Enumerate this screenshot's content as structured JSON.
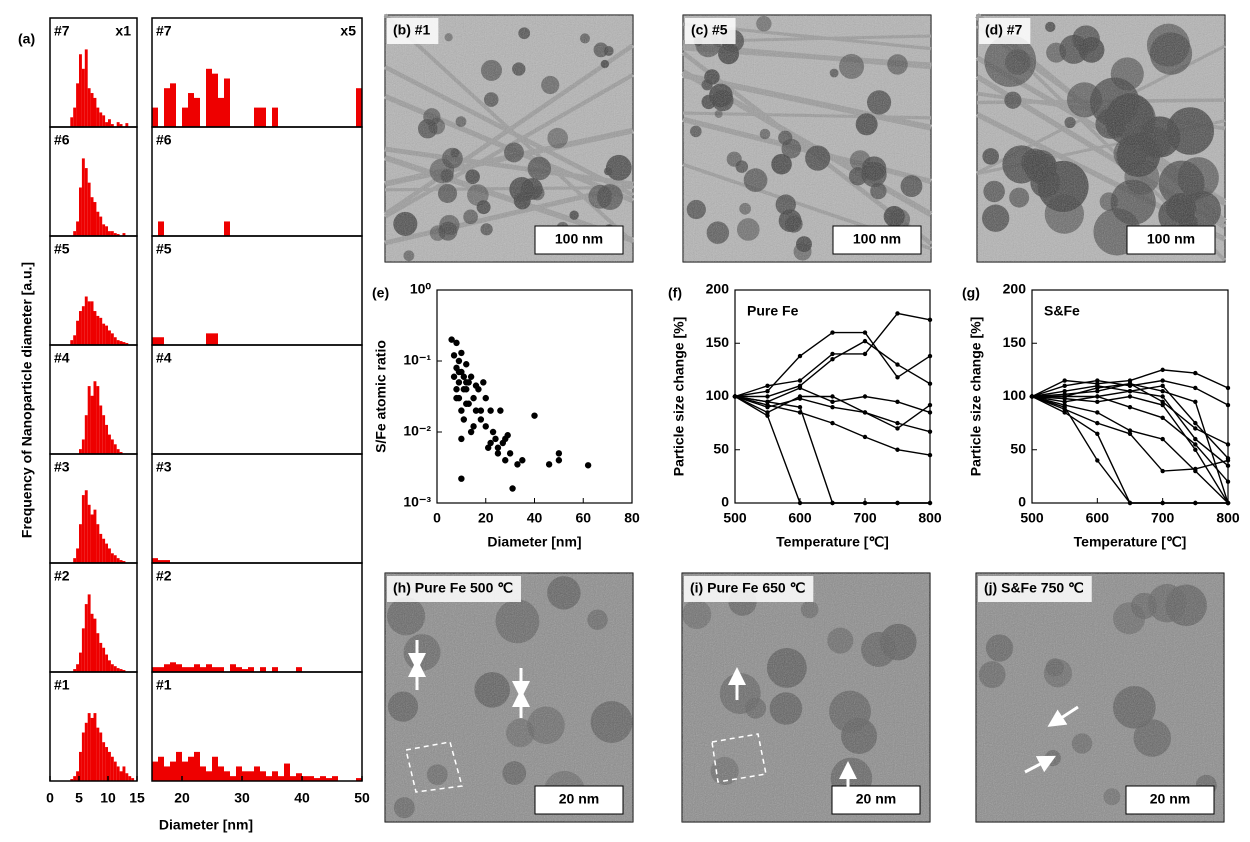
{
  "chart_data": [
    {
      "type": "histogram",
      "panel_label": "(a)",
      "scale_note": "x1",
      "xlabel": "Diameter [nm]",
      "ylabel": "Frequency of Nanoparticle diameter [a.u.]",
      "bins": [
        0,
        0.5,
        1,
        1.5,
        2,
        2.5,
        3,
        3.5,
        4,
        4.5,
        5,
        5.5,
        6,
        6.5,
        7,
        7.5,
        8,
        8.5,
        9,
        9.5,
        10,
        10.5,
        11,
        11.5,
        12,
        12.5,
        13,
        13.5,
        14,
        14.5,
        15
      ],
      "xlim": [
        0,
        15
      ],
      "xticks": [
        0,
        5,
        10,
        15
      ],
      "ylim": [
        0,
        100
      ],
      "series": [
        {
          "name": "#7",
          "color": "#ee0000",
          "values": [
            0,
            0,
            0,
            0,
            0,
            0,
            0,
            10,
            20,
            45,
            75,
            60,
            80,
            40,
            35,
            30,
            20,
            15,
            12,
            5,
            8,
            3,
            0,
            5,
            3,
            0,
            4,
            0,
            0,
            0
          ]
        },
        {
          "name": "#6",
          "color": "#ee0000",
          "values": [
            0,
            0,
            0,
            0,
            0,
            0,
            0,
            0,
            5,
            15,
            50,
            80,
            70,
            55,
            40,
            35,
            25,
            20,
            12,
            10,
            5,
            5,
            3,
            2,
            0,
            3,
            0,
            0,
            0,
            0
          ]
        },
        {
          "name": "#5",
          "color": "#ee0000",
          "values": [
            0,
            0,
            0,
            0,
            0,
            0,
            0,
            5,
            10,
            25,
            35,
            40,
            50,
            45,
            45,
            35,
            30,
            28,
            22,
            20,
            15,
            12,
            8,
            5,
            4,
            3,
            2,
            0,
            0,
            0
          ]
        },
        {
          "name": "#4",
          "color": "#ee0000",
          "values": [
            0,
            0,
            0,
            0,
            0,
            0,
            0,
            0,
            0,
            0,
            5,
            15,
            40,
            70,
            60,
            75,
            70,
            50,
            40,
            30,
            20,
            15,
            10,
            5,
            2,
            0,
            0,
            0,
            0,
            0
          ]
        },
        {
          "name": "#3",
          "color": "#ee0000",
          "values": [
            0,
            0,
            0,
            0,
            0,
            0,
            0,
            0,
            5,
            15,
            40,
            70,
            75,
            60,
            50,
            55,
            40,
            30,
            25,
            20,
            15,
            10,
            8,
            5,
            3,
            2,
            0,
            0,
            0,
            0
          ]
        },
        {
          "name": "#2",
          "color": "#ee0000",
          "values": [
            0,
            0,
            0,
            0,
            0,
            0,
            0,
            0,
            3,
            8,
            20,
            45,
            70,
            80,
            60,
            55,
            40,
            30,
            25,
            18,
            12,
            8,
            6,
            4,
            3,
            2,
            0,
            0,
            0,
            0
          ]
        },
        {
          "name": "#1",
          "color": "#ee0000",
          "values": [
            0,
            0,
            0,
            0,
            0,
            0,
            0,
            2,
            5,
            10,
            30,
            50,
            60,
            70,
            65,
            70,
            55,
            50,
            40,
            35,
            30,
            25,
            20,
            15,
            10,
            15,
            8,
            5,
            3,
            0
          ]
        }
      ]
    },
    {
      "type": "histogram",
      "scale_note": "x5",
      "bins": [
        15,
        16,
        17,
        18,
        19,
        20,
        21,
        22,
        23,
        24,
        25,
        26,
        27,
        28,
        29,
        30,
        31,
        32,
        33,
        34,
        35,
        36,
        37,
        38,
        39,
        40,
        41,
        42,
        43,
        44,
        45,
        46,
        47,
        48,
        49,
        50
      ],
      "xlim": [
        15,
        50
      ],
      "xticks": [
        20,
        30,
        40,
        50
      ],
      "ylim": [
        0,
        100
      ],
      "series": [
        {
          "name": "#7",
          "color": "#ee0000",
          "values": [
            20,
            0,
            40,
            45,
            0,
            20,
            35,
            30,
            0,
            60,
            55,
            30,
            50,
            0,
            0,
            0,
            0,
            20,
            20,
            0,
            20,
            0,
            0,
            0,
            0,
            0,
            0,
            0,
            0,
            0,
            0,
            0,
            0,
            0,
            40
          ]
        },
        {
          "name": "#6",
          "color": "#ee0000",
          "values": [
            0,
            15,
            0,
            0,
            0,
            0,
            0,
            0,
            0,
            0,
            0,
            0,
            15,
            0,
            0,
            0,
            0,
            0,
            0,
            0,
            0,
            0,
            0,
            0,
            0,
            0,
            0,
            0,
            0,
            0,
            0,
            0,
            0,
            0,
            0
          ]
        },
        {
          "name": "#5",
          "color": "#ee0000",
          "values": [
            8,
            8,
            0,
            0,
            0,
            0,
            0,
            0,
            0,
            12,
            12,
            0,
            0,
            0,
            0,
            0,
            0,
            0,
            0,
            0,
            0,
            0,
            0,
            0,
            0,
            0,
            0,
            0,
            0,
            0,
            0,
            0,
            0,
            0,
            0
          ]
        },
        {
          "name": "#4",
          "color": "#ee0000",
          "values": [
            0,
            0,
            0,
            0,
            0,
            0,
            0,
            0,
            0,
            0,
            0,
            0,
            0,
            0,
            0,
            0,
            0,
            0,
            0,
            0,
            0,
            0,
            0,
            0,
            0,
            0,
            0,
            0,
            0,
            0,
            0,
            0,
            0,
            0,
            0
          ]
        },
        {
          "name": "#3",
          "color": "#ee0000",
          "values": [
            5,
            3,
            3,
            0,
            0,
            0,
            0,
            0,
            0,
            0,
            0,
            0,
            0,
            0,
            0,
            0,
            0,
            0,
            0,
            0,
            0,
            0,
            0,
            0,
            0,
            0,
            0,
            0,
            0,
            0,
            0,
            0,
            0,
            0,
            0
          ]
        },
        {
          "name": "#2",
          "color": "#ee0000",
          "values": [
            5,
            5,
            8,
            10,
            8,
            5,
            5,
            8,
            5,
            8,
            5,
            5,
            0,
            8,
            5,
            3,
            5,
            0,
            5,
            0,
            5,
            0,
            0,
            0,
            5,
            0,
            0,
            0,
            0,
            0,
            0,
            0,
            0,
            0,
            0
          ]
        },
        {
          "name": "#1",
          "color": "#ee0000",
          "values": [
            20,
            25,
            15,
            20,
            30,
            20,
            25,
            30,
            15,
            10,
            25,
            15,
            10,
            5,
            15,
            10,
            10,
            15,
            10,
            5,
            10,
            5,
            18,
            5,
            8,
            5,
            5,
            3,
            5,
            3,
            5,
            0,
            0,
            0,
            3
          ]
        }
      ]
    },
    {
      "type": "scatter",
      "panel_label": "(e)",
      "xlabel": "Diameter [nm]",
      "ylabel": "S/Fe atomic ratio",
      "log_y": true,
      "color": "#000000",
      "xlim": [
        0,
        80
      ],
      "xticks": [
        0,
        20,
        40,
        60,
        80
      ],
      "ylim": [
        0.001,
        1
      ],
      "yticks": [
        {
          "value": 0.001,
          "label": "10⁻³"
        },
        {
          "value": 0.01,
          "label": "10⁻²"
        },
        {
          "value": 0.1,
          "label": "10⁻¹"
        },
        {
          "value": 1,
          "label": "10⁰"
        }
      ],
      "x": [
        6,
        7,
        7,
        8,
        8,
        8,
        9,
        9,
        9,
        10,
        10,
        10,
        11,
        11,
        12,
        12,
        13,
        13,
        14,
        15,
        15,
        16,
        17,
        18,
        19,
        20,
        21,
        22,
        23,
        24,
        25,
        26,
        27,
        28,
        29,
        30,
        31,
        33,
        35,
        40,
        46,
        50,
        50,
        62,
        8,
        9,
        10,
        11,
        12,
        14,
        16,
        18,
        20,
        22,
        25,
        28,
        10,
        12
      ],
      "values": [
        0.2,
        0.12,
        0.06,
        0.18,
        0.08,
        0.04,
        0.1,
        0.05,
        0.03,
        0.13,
        0.07,
        0.02,
        0.06,
        0.015,
        0.09,
        0.04,
        0.05,
        0.025,
        0.06,
        0.03,
        0.012,
        0.02,
        0.04,
        0.015,
        0.05,
        0.03,
        0.006,
        0.02,
        0.01,
        0.008,
        0.006,
        0.02,
        0.007,
        0.004,
        0.009,
        0.005,
        0.0016,
        0.0035,
        0.004,
        0.017,
        0.0035,
        0.005,
        0.004,
        0.0034,
        0.03,
        0.07,
        0.008,
        0.04,
        0.025,
        0.01,
        0.045,
        0.02,
        0.012,
        0.007,
        0.005,
        0.008,
        0.0022,
        0.05
      ]
    },
    {
      "type": "line",
      "panel_label": "(f)",
      "annotation": "Pure Fe",
      "xlabel": "Temperature [℃]",
      "ylabel": "Particle size change [%]",
      "x": [
        500,
        550,
        600,
        650,
        700,
        750,
        800
      ],
      "xlim": [
        500,
        800
      ],
      "xticks": [
        500,
        600,
        700,
        800
      ],
      "ylim": [
        0,
        200
      ],
      "yticks": [
        0,
        50,
        100,
        150,
        200
      ],
      "series": [
        {
          "color": "#000000",
          "values": [
            100,
            105,
            138,
            160,
            160,
            118,
            138
          ]
        },
        {
          "color": "#000000",
          "values": [
            100,
            110,
            115,
            140,
            140,
            178,
            172
          ]
        },
        {
          "color": "#000000",
          "values": [
            100,
            100,
            110,
            135,
            152,
            130,
            112
          ]
        },
        {
          "color": "#000000",
          "values": [
            100,
            95,
            108,
            95,
            100,
            95,
            85
          ]
        },
        {
          "color": "#000000",
          "values": [
            100,
            85,
            100,
            100,
            85,
            70,
            92
          ]
        },
        {
          "color": "#000000",
          "values": [
            100,
            90,
            98,
            90,
            85,
            75,
            67
          ]
        },
        {
          "color": "#000000",
          "values": [
            100,
            92,
            85,
            75,
            62,
            50,
            45
          ]
        },
        {
          "color": "#000000",
          "values": [
            100,
            82,
            0,
            0,
            0,
            0,
            0
          ]
        },
        {
          "color": "#000000",
          "values": [
            100,
            95,
            90,
            0,
            0,
            0,
            0
          ]
        }
      ]
    },
    {
      "type": "line",
      "panel_label": "(g)",
      "annotation": "S&Fe",
      "xlabel": "Temperature [℃]",
      "ylabel": "Particle size change [%]",
      "x": [
        500,
        550,
        600,
        650,
        700,
        750,
        800
      ],
      "xlim": [
        500,
        800
      ],
      "xticks": [
        500,
        600,
        700,
        800
      ],
      "ylim": [
        0,
        200
      ],
      "yticks": [
        0,
        50,
        100,
        150,
        200
      ],
      "series": [
        {
          "color": "#000000",
          "values": [
            100,
            115,
            112,
            115,
            125,
            122,
            108
          ]
        },
        {
          "color": "#000000",
          "values": [
            100,
            110,
            115,
            110,
            115,
            108,
            92
          ]
        },
        {
          "color": "#000000",
          "values": [
            100,
            105,
            110,
            105,
            110,
            75,
            42
          ]
        },
        {
          "color": "#000000",
          "values": [
            100,
            100,
            108,
            112,
            105,
            95,
            0
          ]
        },
        {
          "color": "#000000",
          "values": [
            100,
            100,
            100,
            105,
            100,
            60,
            35
          ]
        },
        {
          "color": "#000000",
          "values": [
            100,
            98,
            95,
            100,
            92,
            50,
            0
          ]
        },
        {
          "color": "#000000",
          "values": [
            100,
            95,
            100,
            90,
            80,
            55,
            20
          ]
        },
        {
          "color": "#000000",
          "values": [
            100,
            92,
            85,
            68,
            60,
            30,
            0
          ]
        },
        {
          "color": "#000000",
          "values": [
            100,
            88,
            75,
            65,
            30,
            32,
            40
          ]
        },
        {
          "color": "#000000",
          "values": [
            100,
            90,
            40,
            0,
            0,
            0,
            0
          ]
        },
        {
          "color": "#000000",
          "values": [
            100,
            102,
            105,
            112,
            95,
            70,
            55
          ]
        },
        {
          "color": "#000000",
          "values": [
            100,
            85,
            65,
            0,
            0,
            0,
            0
          ]
        }
      ]
    }
  ],
  "micrographs": [
    {
      "label": "(b) #1",
      "scale_bar": "100 nm"
    },
    {
      "label": "(c) #5",
      "scale_bar": "100 nm"
    },
    {
      "label": "(d) #7",
      "scale_bar": "100 nm"
    },
    {
      "label": "(h) Pure Fe 500 ℃",
      "scale_bar": "20 nm"
    },
    {
      "label": "(i) Pure Fe 650 ℃",
      "scale_bar": "20 nm"
    },
    {
      "label": "(j) S&Fe 750 ℃",
      "scale_bar": "20 nm"
    }
  ]
}
